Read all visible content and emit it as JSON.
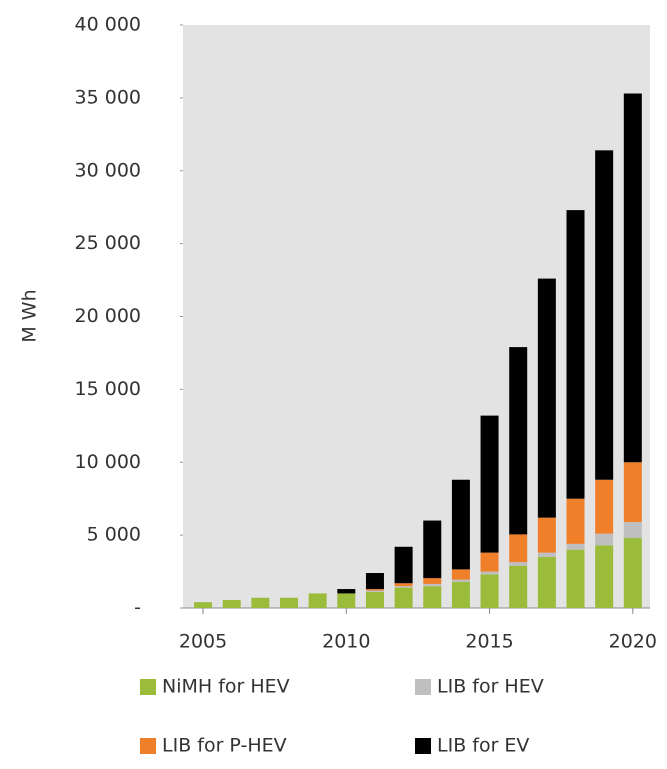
{
  "chart_data": {
    "type": "stacked_bar",
    "y_label": "M Wh",
    "x": [
      2005,
      2006,
      2007,
      2008,
      2009,
      2010,
      2011,
      2012,
      2013,
      2014,
      2015,
      2016,
      2017,
      2018,
      2019,
      2020
    ],
    "xlim": [
      2004.3,
      2020.6
    ],
    "xticks": [
      2005,
      2010,
      2015,
      2020
    ],
    "ylim": [
      0,
      40000
    ],
    "yticks": [
      {
        "value": 0,
        "label": "-"
      },
      {
        "value": 5000,
        "label": "5 000"
      },
      {
        "value": 10000,
        "label": "10 000"
      },
      {
        "value": 15000,
        "label": "15 000"
      },
      {
        "value": 20000,
        "label": "20 000"
      },
      {
        "value": 25000,
        "label": "25 000"
      },
      {
        "value": 30000,
        "label": "30 000"
      },
      {
        "value": 35000,
        "label": "35 000"
      },
      {
        "value": 40000,
        "label": "40 000"
      }
    ],
    "grid": false,
    "legend": "bottom",
    "series": [
      {
        "name": "NiMH for HEV",
        "color": "#9bbb3b",
        "values": [
          400,
          550,
          700,
          700,
          1000,
          1000,
          1100,
          1400,
          1500,
          1800,
          2300,
          2900,
          3500,
          4000,
          4300,
          4800
        ]
      },
      {
        "name": "LIB for HEV",
        "color": "#bfbfbf",
        "values": [
          0,
          0,
          0,
          0,
          0,
          0,
          100,
          100,
          150,
          150,
          200,
          250,
          300,
          400,
          800,
          1100
        ]
      },
      {
        "name": "LIB for P-HEV",
        "color": "#f07f2a",
        "values": [
          0,
          0,
          0,
          0,
          0,
          0,
          100,
          200,
          400,
          700,
          1300,
          1900,
          2400,
          3100,
          3700,
          4100
        ]
      },
      {
        "name": "LIB for EV",
        "color": "#000000",
        "values": [
          0,
          0,
          0,
          0,
          0,
          300,
          1100,
          2500,
          3950,
          6150,
          9400,
          12850,
          16400,
          19800,
          22600,
          25300
        ]
      }
    ]
  }
}
